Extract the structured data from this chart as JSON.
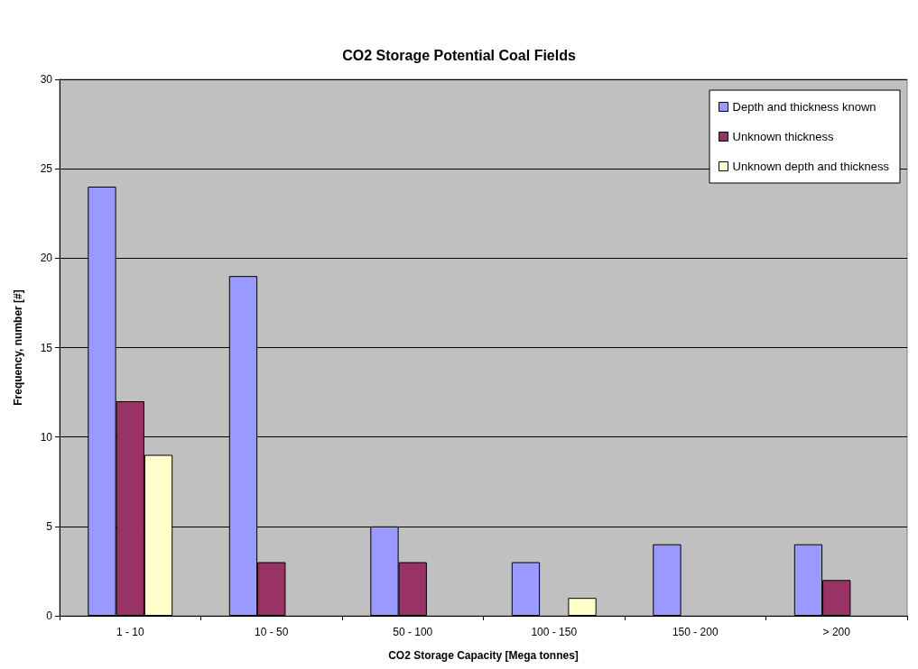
{
  "chart_data": {
    "type": "bar",
    "title": "CO2 Storage Potential Coal Fields",
    "xlabel": "CO2 Storage Capacity [Mega tonnes]",
    "ylabel": "Frequency, number [#]",
    "categories": [
      "1 - 10",
      "10 - 50",
      "50 - 100",
      "100 - 150",
      "150 - 200",
      "> 200"
    ],
    "series": [
      {
        "name": "Depth and thickness known",
        "color": "#9999ff",
        "values": [
          24,
          19,
          5,
          3,
          4,
          4
        ]
      },
      {
        "name": "Unknown thickness",
        "color": "#993366",
        "values": [
          12,
          3,
          3,
          null,
          null,
          2
        ]
      },
      {
        "name": "Unknown depth and thickness",
        "color": "#ffffcc",
        "values": [
          9,
          null,
          null,
          1,
          null,
          null
        ]
      }
    ],
    "ylim": [
      0,
      30
    ],
    "yticks": [
      0,
      5,
      10,
      15,
      20,
      25,
      30
    ],
    "grid": "y",
    "legend": "top right"
  }
}
